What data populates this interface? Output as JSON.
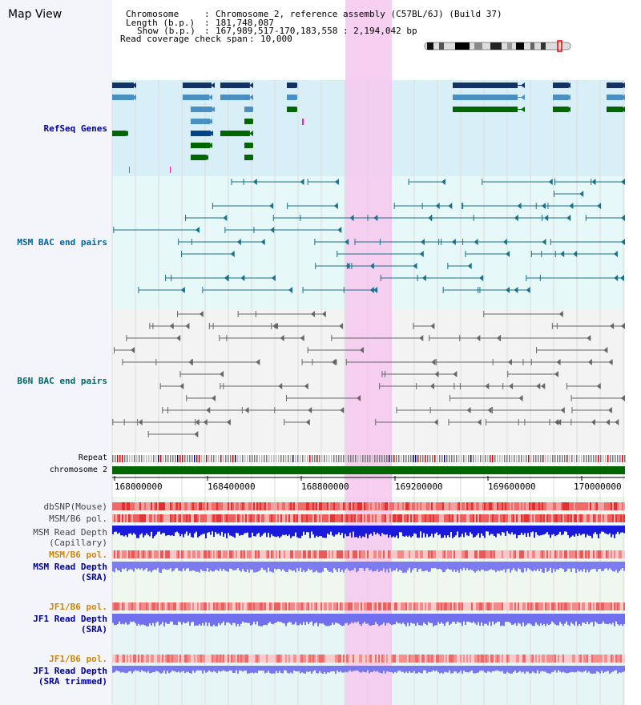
{
  "title": "Map View",
  "header": {
    "chromosome_label": "Chromosome",
    "chromosome_value": "Chromosome 2, reference assembly (C57BL/6J) (Build 37)",
    "length_label": "Length (b.p.)",
    "length_value": "181,748,087",
    "show_label": "Show (b.p.)",
    "show_value": "167,989,517-170,183,558 : 2,194,042 bp",
    "coverage_label": "Read coverage check span",
    "coverage_value": "10,000"
  },
  "tracks": {
    "refseq": "RefSeq Genes",
    "msm_bac": "MSM BAC end pairs",
    "b6n_bac": "B6N BAC end pairs",
    "repeat": "Repeat",
    "chromosome": "chromosome 2",
    "dbsnp": "dbSNP(Mouse)",
    "msm_b6_pol_1": "MSM/B6 pol.",
    "msm_read_depth_cap_1": "MSM Read Depth",
    "msm_read_depth_cap_2": "(Capillary)",
    "msm_b6_pol_2": "MSM/B6 pol.",
    "msm_read_depth_sra_1": "MSM Read Depth",
    "msm_read_depth_sra_2": "(SRA)",
    "jf1_b6_pol_1": "JF1/B6 pol.",
    "jf1_read_depth_sra_1": "JF1 Read Depth",
    "jf1_read_depth_sra_2": "(SRA)",
    "jf1_b6_pol_2": "JF1/B6 pol.",
    "jf1_read_depth_trim_1": "JF1 Read Depth",
    "jf1_read_depth_trim_2": "(SRA trimmed)"
  },
  "axis_ticks": [
    "168000000",
    "168400000",
    "168800000",
    "169200000",
    "169600000",
    "170000000"
  ],
  "colors": {
    "refseq_label": "#000099",
    "msm_label": "#006699",
    "b6n_label": "#006666",
    "orange_label": "#cc8800",
    "blue_label": "#000099",
    "highlight": "#f6c8ee",
    "chromosome_bar": "#006600"
  }
}
